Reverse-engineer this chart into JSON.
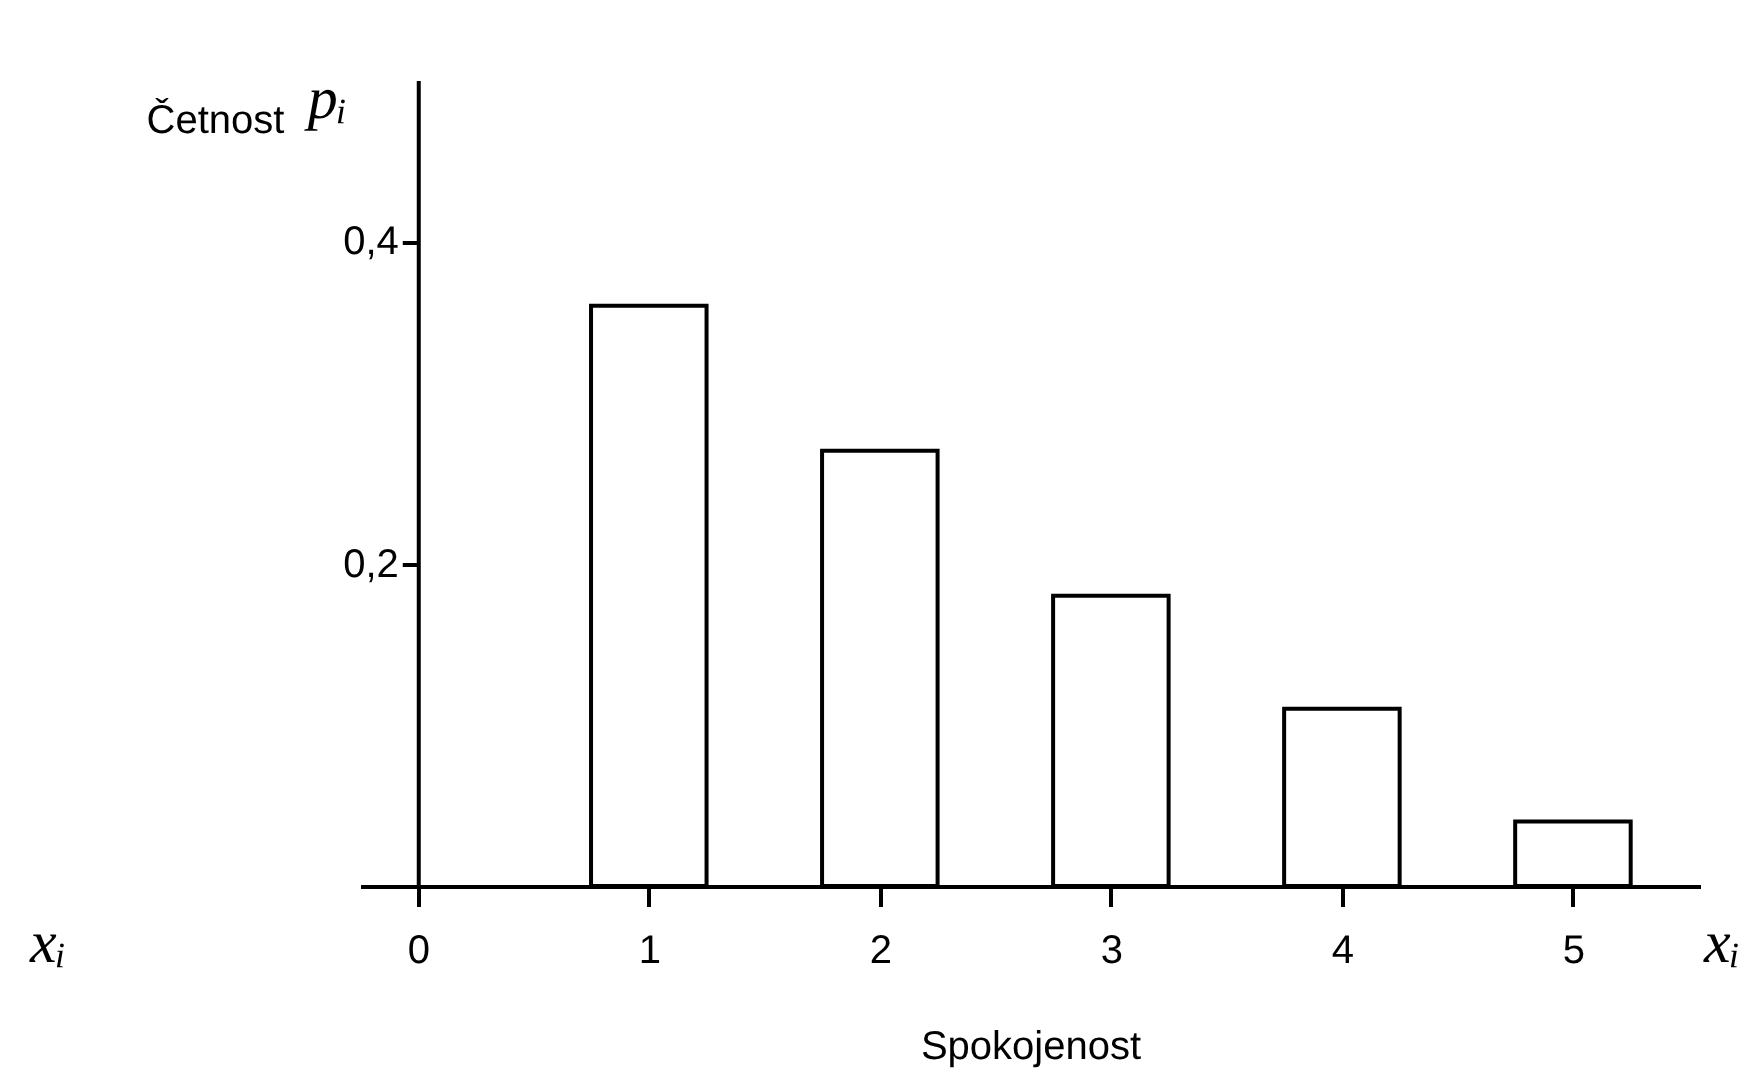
{
  "chart_data": {
    "type": "bar",
    "ylabel": "Četnost",
    "xlabel": "Spokojenost",
    "x": [
      1,
      2,
      3,
      4,
      5
    ],
    "values": [
      0.36,
      0.27,
      0.18,
      0.11,
      0.04
    ],
    "color": "#ffffff",
    "xlim": [
      -0.25,
      5.55
    ],
    "xticks": [
      0,
      1,
      2,
      3,
      4,
      5
    ],
    "ylim": [
      0,
      0.5
    ],
    "yticks": [
      {
        "value": 0.2,
        "label": "0,2"
      },
      {
        "value": 0.4,
        "label": "0,4"
      }
    ],
    "annotations": [
      "pᵢ",
      "xᵢ",
      "xᵢ"
    ],
    "grid": false
  }
}
